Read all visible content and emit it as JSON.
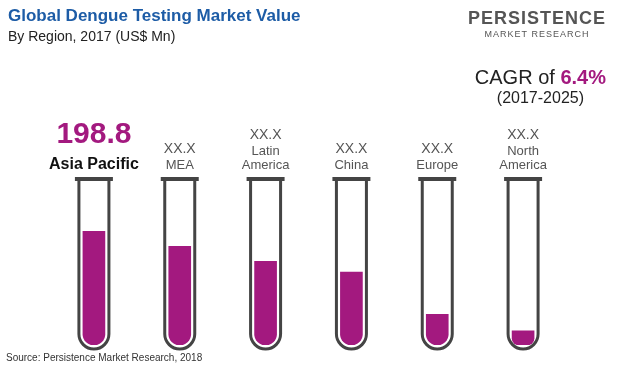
{
  "chart_data": {
    "type": "bar",
    "title": "Global Dengue Testing Market Value",
    "subtitle": "By Region, 2017 (US$ Mn)",
    "categories": [
      "Asia Pacific",
      "MEA",
      "Latin America",
      "China",
      "Europe",
      "North America"
    ],
    "values": [
      198.8,
      172.7,
      146.6,
      127.7,
      53.7,
      24.7
    ],
    "value_labels": [
      "198.8",
      "XX.X",
      "XX.X",
      "XX.X",
      "XX.X",
      "XX.X"
    ],
    "color": "#a3197f",
    "ylim": [
      0,
      280
    ],
    "grid": false,
    "tick_labels": false,
    "data_labels": true,
    "annotations": [
      "CAGR of 6.4%",
      "(2017-2025)"
    ],
    "brand": [
      "PERSISTENCE",
      "MARKET RESEARCH"
    ],
    "source": "Source: Persistence Market Research, 2018"
  }
}
